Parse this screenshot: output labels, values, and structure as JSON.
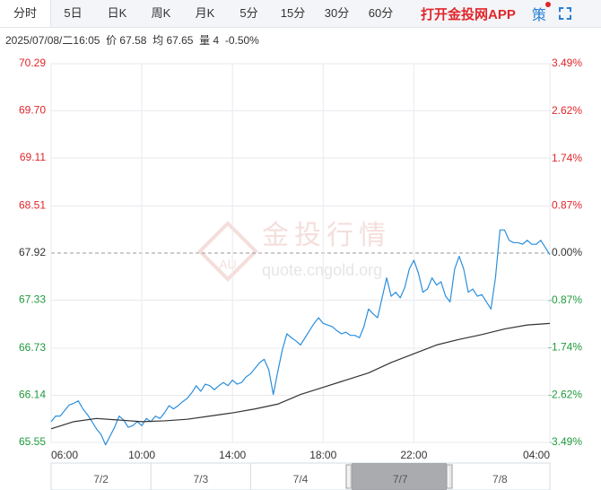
{
  "toolbar": {
    "tabs": [
      "分时",
      "5日",
      "日K",
      "周K",
      "月K",
      "5分",
      "15分",
      "30分",
      "60分"
    ],
    "app_link": "打开金投网APP",
    "strategy": "策"
  },
  "info": "2025/07/08/二16:05  价 67.58  均 67.65  量 4  -0.50%",
  "watermark": {
    "logo": "AU",
    "title": "金投行情",
    "url": "quote.cngold.org"
  },
  "navigator": {
    "labels": [
      "7/2",
      "7/3",
      "7/4",
      "7/7",
      "7/8"
    ]
  },
  "chart_data": {
    "type": "line",
    "x": [
      "06:00",
      "06:12",
      "06:24",
      "06:36",
      "06:48",
      "07:00",
      "07:12",
      "07:24",
      "07:36",
      "07:48",
      "08:00",
      "08:12",
      "08:24",
      "08:36",
      "08:48",
      "09:00",
      "09:12",
      "09:24",
      "09:36",
      "09:48",
      "10:00",
      "10:12",
      "10:24",
      "10:36",
      "10:48",
      "11:00",
      "11:12",
      "11:24",
      "11:36",
      "11:48",
      "12:00",
      "12:12",
      "12:24",
      "12:36",
      "12:48",
      "13:00",
      "13:12",
      "13:24",
      "13:36",
      "13:48",
      "14:00",
      "14:12",
      "14:24",
      "14:36",
      "14:48",
      "15:00",
      "15:12",
      "15:24",
      "15:36",
      "15:48",
      "16:00",
      "16:12",
      "16:24",
      "16:36",
      "16:48",
      "17:00",
      "17:12",
      "17:24",
      "17:36",
      "17:48",
      "18:00",
      "18:12",
      "18:24",
      "18:36",
      "18:48",
      "19:00",
      "19:12",
      "19:24",
      "19:36",
      "19:48",
      "20:00",
      "20:12",
      "20:24",
      "20:36",
      "20:48",
      "21:00",
      "21:12",
      "21:24",
      "21:36",
      "21:48",
      "22:00",
      "22:12",
      "22:24",
      "22:36",
      "22:48",
      "23:00",
      "23:12",
      "23:24",
      "23:36",
      "23:48",
      "00:00",
      "00:12",
      "00:24",
      "00:36",
      "00:48",
      "01:00",
      "01:12",
      "01:24",
      "01:36",
      "01:48",
      "02:00",
      "02:12",
      "02:24",
      "02:36",
      "02:48",
      "03:00",
      "03:12",
      "03:24",
      "03:36",
      "03:48",
      "04:00"
    ],
    "series": [
      {
        "color": "#2b8fdc",
        "values": [
          65.81,
          65.88,
          65.88,
          65.95,
          66.02,
          66.04,
          66.07,
          65.97,
          65.9,
          65.81,
          65.72,
          65.65,
          65.52,
          65.63,
          65.74,
          65.88,
          65.83,
          65.74,
          65.76,
          65.81,
          65.76,
          65.85,
          65.81,
          65.88,
          65.85,
          65.92,
          66.01,
          65.97,
          66.01,
          66.06,
          66.1,
          66.17,
          66.26,
          66.19,
          66.28,
          66.26,
          66.21,
          66.26,
          66.3,
          66.26,
          66.33,
          66.28,
          66.3,
          66.37,
          66.41,
          66.48,
          66.55,
          66.59,
          66.46,
          66.15,
          66.44,
          66.71,
          66.91,
          66.86,
          66.82,
          66.77,
          66.86,
          66.95,
          67.04,
          67.11,
          67.04,
          67.02,
          67.0,
          66.95,
          66.91,
          66.93,
          66.89,
          66.89,
          66.86,
          67.0,
          67.22,
          67.16,
          67.11,
          67.36,
          67.61,
          67.38,
          67.43,
          67.36,
          67.49,
          67.72,
          67.83,
          67.67,
          67.43,
          67.47,
          67.61,
          67.52,
          67.56,
          67.38,
          67.31,
          67.72,
          67.88,
          67.72,
          67.43,
          67.47,
          67.38,
          67.4,
          67.31,
          67.22,
          67.61,
          68.21,
          68.21,
          68.08,
          68.05,
          68.05,
          68.03,
          68.08,
          68.03,
          68.03,
          68.08,
          67.99,
          67.9
        ]
      },
      {
        "color": "#333333",
        "x": [
          "06:00",
          "07:00",
          "08:00",
          "09:00",
          "10:00",
          "11:00",
          "12:00",
          "13:00",
          "14:00",
          "15:00",
          "16:00",
          "17:00",
          "18:00",
          "19:00",
          "20:00",
          "21:00",
          "22:00",
          "23:00",
          "00:00",
          "01:00",
          "02:00",
          "03:00",
          "04:00"
        ],
        "values": [
          65.72,
          65.81,
          65.85,
          65.83,
          65.81,
          65.82,
          65.84,
          65.88,
          65.92,
          65.97,
          66.03,
          66.15,
          66.24,
          66.33,
          66.42,
          66.55,
          66.66,
          66.77,
          66.84,
          66.9,
          66.97,
          67.02,
          67.04
        ]
      }
    ],
    "xlim": [
      "06:00",
      "04:00"
    ],
    "xticks": [
      "06:00",
      "10:00",
      "14:00",
      "18:00",
      "22:00",
      "04:00"
    ],
    "ylim": [
      65.55,
      70.29
    ],
    "yticks": [
      70.29,
      {
        "value": 69.7,
        "label": "69.70"
      },
      69.11,
      68.51,
      67.92,
      67.33,
      66.73,
      66.14,
      65.55
    ],
    "y2lim": [
      -3.49,
      3.49
    ],
    "y2ticks": [
      {
        "value": 3.49,
        "label": "3.49%"
      },
      {
        "value": 2.62,
        "label": "2.62%"
      },
      {
        "value": 1.74,
        "label": "1.74%"
      },
      {
        "value": 0.87,
        "label": "0.87%"
      },
      {
        "value": 0,
        "label": "0.00%"
      },
      {
        "value": -0.87,
        "label": "-0.87%"
      },
      {
        "value": -1.74,
        "label": "-1.74%"
      },
      {
        "value": -2.62,
        "label": "-2.62%"
      },
      {
        "value": -3.49,
        "label": "-3.49%"
      }
    ],
    "grid": true,
    "colors": {
      "up": "#e0262b",
      "down": "#1f9a3c",
      "flat": "#333333"
    }
  }
}
